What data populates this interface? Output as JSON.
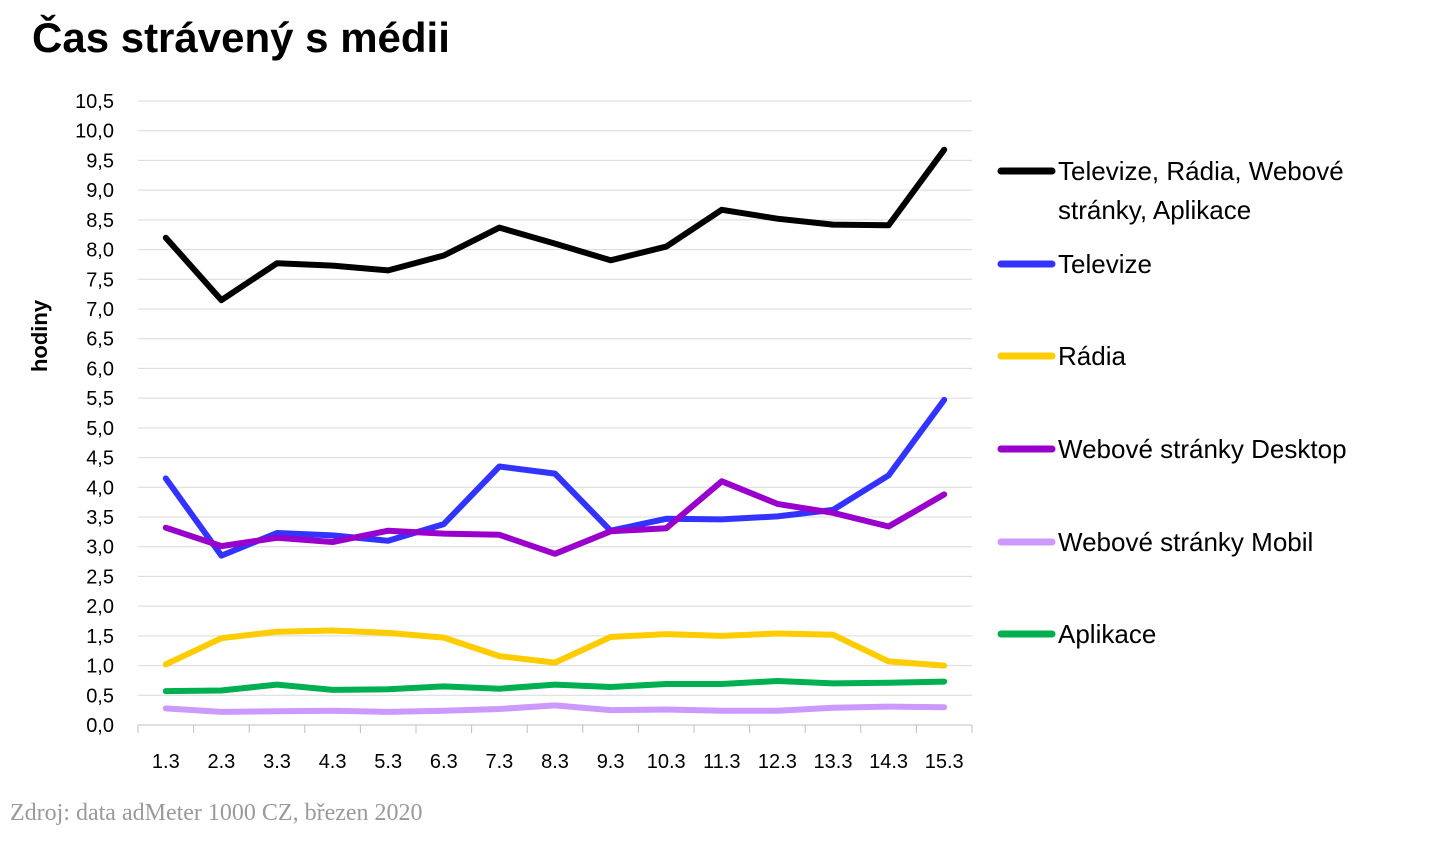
{
  "chart_data": {
    "type": "line",
    "title": "Čas strávený s médii",
    "xlabel": "",
    "ylabel": "hodiny",
    "source": "Zdroj: data adMeter 1000 CZ, březen 2020",
    "ylim": [
      0,
      10.5
    ],
    "ystep": 0.5,
    "grid": true,
    "legend_position": "right",
    "categories": [
      "1.3",
      "2.3",
      "3.3",
      "4.3",
      "5.3",
      "6.3",
      "7.3",
      "8.3",
      "9.3",
      "10.3",
      "11.3",
      "12.3",
      "13.3",
      "14.3",
      "15.3"
    ],
    "series": [
      {
        "name": "Televize, Rádia, Webové stránky, Aplikace",
        "legend_lines": [
          "Televize, Rádia, Webové",
          "stránky, Aplikace"
        ],
        "color": "#000000",
        "values": [
          8.2,
          7.15,
          7.77,
          7.73,
          7.65,
          7.9,
          8.37,
          8.1,
          7.82,
          8.05,
          8.67,
          8.52,
          8.42,
          8.41,
          9.68
        ]
      },
      {
        "name": "Televize",
        "legend_lines": [
          "Televize"
        ],
        "color": "#3333ff",
        "values": [
          4.15,
          2.85,
          3.23,
          3.19,
          3.1,
          3.38,
          4.35,
          4.23,
          3.27,
          3.47,
          3.46,
          3.51,
          3.62,
          4.2,
          5.47
        ]
      },
      {
        "name": "Rádia",
        "legend_lines": [
          "Rádia"
        ],
        "color": "#ffcc00",
        "values": [
          1.02,
          1.46,
          1.57,
          1.59,
          1.55,
          1.47,
          1.16,
          1.05,
          1.48,
          1.53,
          1.5,
          1.54,
          1.52,
          1.07,
          1.0
        ]
      },
      {
        "name": "Webové stránky Desktop",
        "legend_lines": [
          "Webové stránky Desktop"
        ],
        "color": "#9900cc",
        "values": [
          3.32,
          3.01,
          3.15,
          3.08,
          3.27,
          3.22,
          3.2,
          2.88,
          3.26,
          3.31,
          4.1,
          3.72,
          3.57,
          3.34,
          3.88
        ]
      },
      {
        "name": "Webové stránky Mobil",
        "legend_lines": [
          "Webové stránky Mobil"
        ],
        "color": "#cc99ff",
        "values": [
          0.28,
          0.22,
          0.23,
          0.24,
          0.22,
          0.24,
          0.27,
          0.33,
          0.25,
          0.26,
          0.24,
          0.24,
          0.29,
          0.31,
          0.3
        ]
      },
      {
        "name": "Aplikace",
        "legend_lines": [
          "Aplikace"
        ],
        "color": "#00b050",
        "values": [
          0.57,
          0.58,
          0.68,
          0.59,
          0.6,
          0.65,
          0.61,
          0.68,
          0.64,
          0.69,
          0.69,
          0.74,
          0.7,
          0.71,
          0.73
        ]
      }
    ]
  }
}
